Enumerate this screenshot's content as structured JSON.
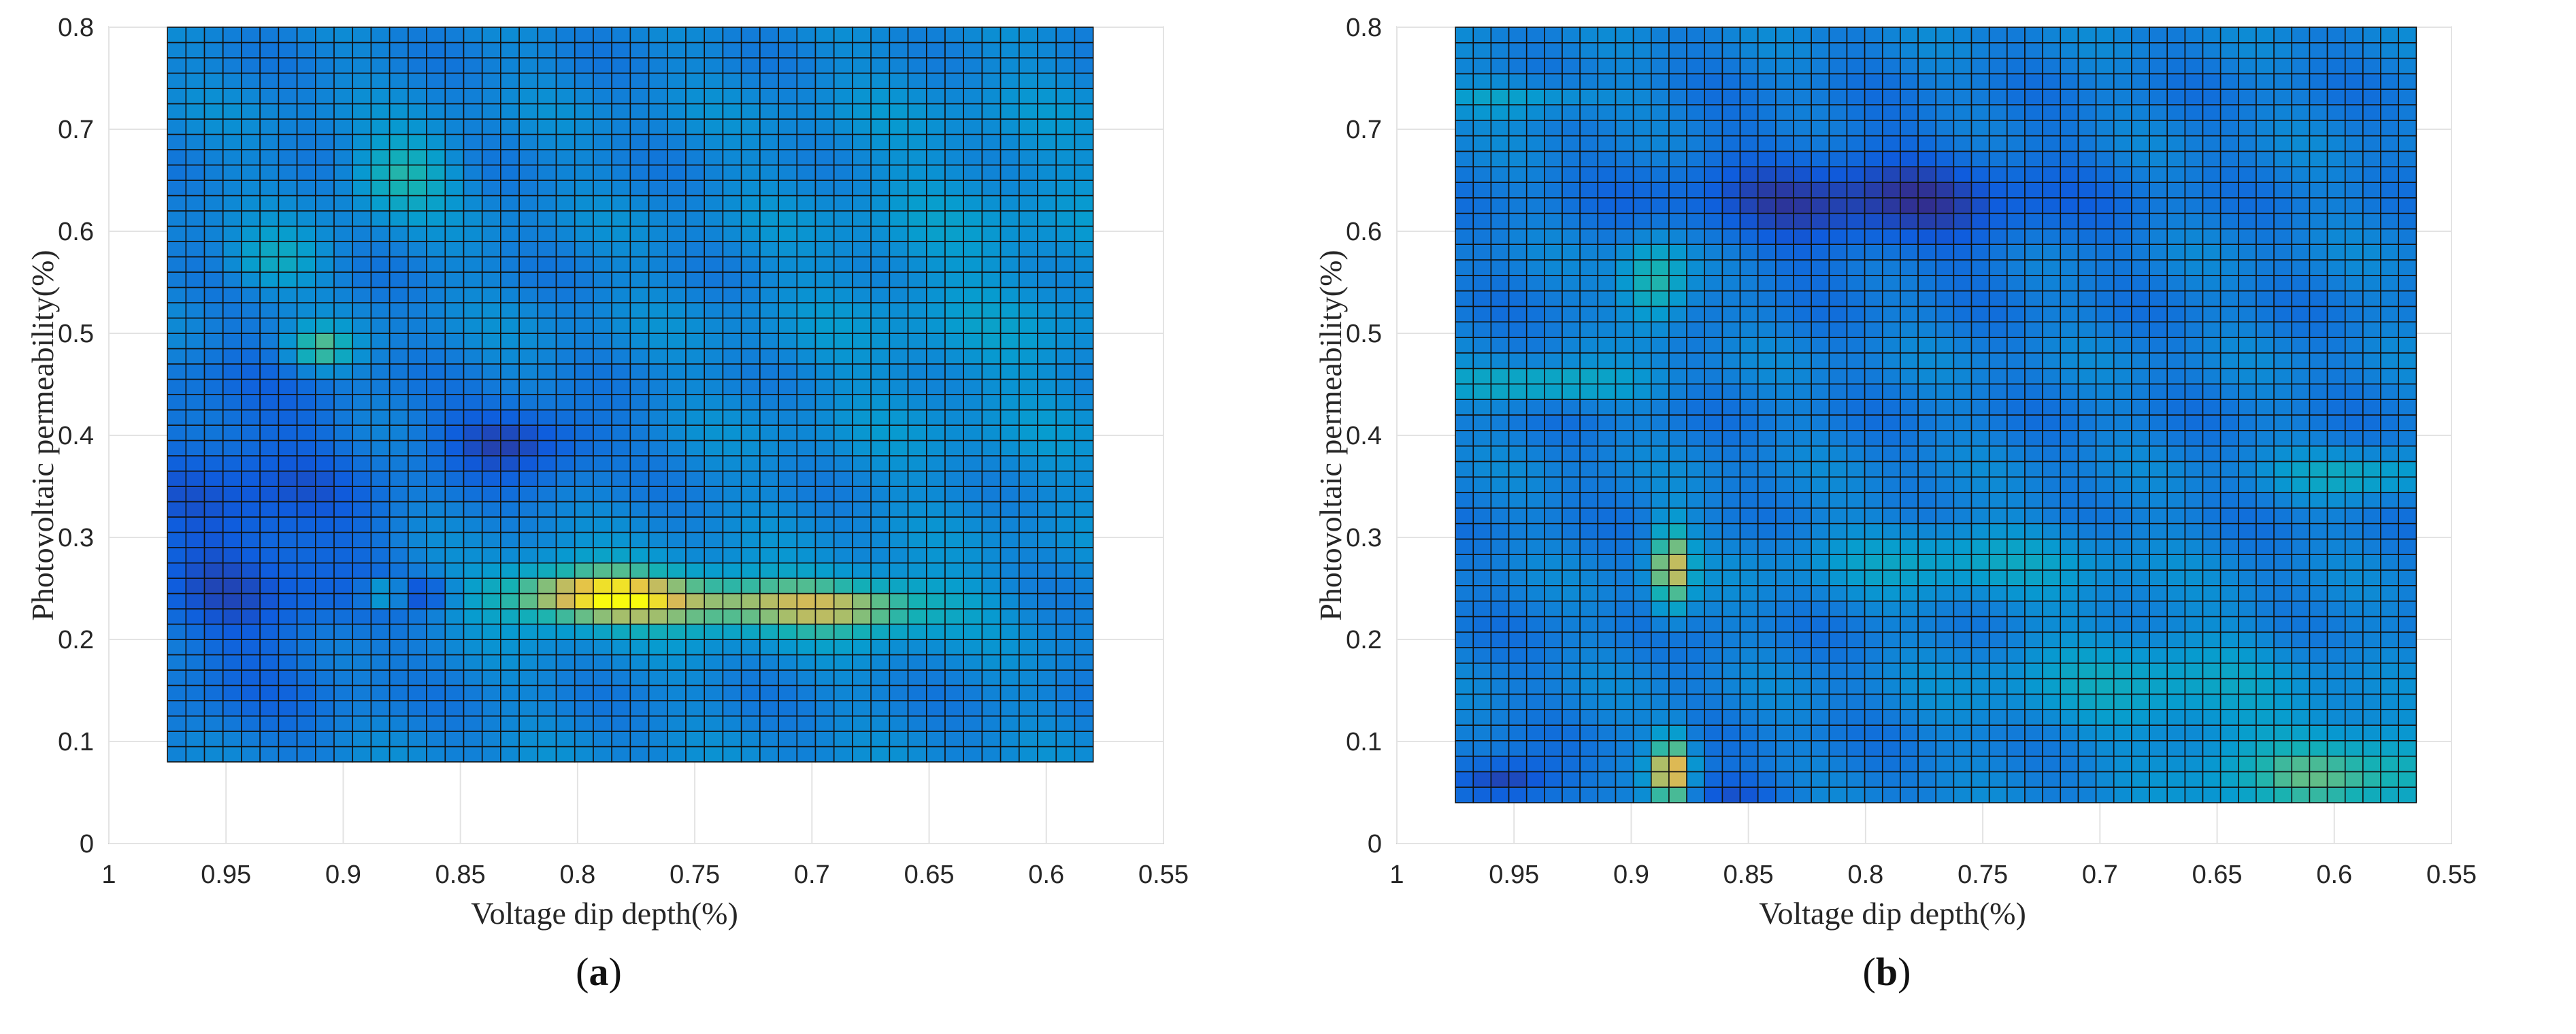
{
  "captions": [
    "a",
    "b"
  ],
  "chart_data": [
    {
      "type": "heatmap",
      "panel": "a",
      "xlabel": "Voltage dip depth(%)",
      "ylabel": "Photovoltaic permeability(%)",
      "xlim": [
        1,
        0.55
      ],
      "x_reversed": true,
      "ylim": [
        0,
        0.8
      ],
      "xticks": [
        1,
        0.95,
        0.9,
        0.85,
        0.8,
        0.75,
        0.7,
        0.65,
        0.6,
        0.55
      ],
      "xtick_labels": [
        "1",
        "0.95",
        "0.9",
        "0.85",
        "0.8",
        "0.75",
        "0.7",
        "0.65",
        "0.6",
        "0.55"
      ],
      "yticks": [
        0,
        0.1,
        0.2,
        0.3,
        0.4,
        0.5,
        0.6,
        0.7,
        0.8
      ],
      "ytick_labels": [
        "0",
        "0.1",
        "0.2",
        "0.3",
        "0.4",
        "0.5",
        "0.6",
        "0.7",
        "0.8"
      ],
      "grid": true,
      "colormap": "parula",
      "x_range": [
        0.975,
        0.58
      ],
      "y_range": [
        0.08,
        0.8
      ],
      "grid_cells": [
        50,
        48
      ],
      "base_value": 0.33,
      "hotspots": [
        {
          "x": 0.795,
          "y": 0.245,
          "value": 0.88,
          "sx": 0.03,
          "sy": 0.02
        },
        {
          "x": 0.73,
          "y": 0.235,
          "value": 0.72,
          "sx": 0.05,
          "sy": 0.02
        },
        {
          "x": 0.68,
          "y": 0.23,
          "value": 0.6,
          "sx": 0.03,
          "sy": 0.02
        },
        {
          "x": 0.825,
          "y": 0.395,
          "value": 0.05,
          "sx": 0.025,
          "sy": 0.025
        },
        {
          "x": 0.875,
          "y": 0.655,
          "value": 0.62,
          "sx": 0.015,
          "sy": 0.025
        },
        {
          "x": 0.91,
          "y": 0.485,
          "value": 0.72,
          "sx": 0.01,
          "sy": 0.015
        },
        {
          "x": 0.93,
          "y": 0.57,
          "value": 0.55,
          "sx": 0.015,
          "sy": 0.02
        },
        {
          "x": 0.882,
          "y": 0.245,
          "value": 0.7,
          "sx": 0.006,
          "sy": 0.008
        },
        {
          "x": 0.865,
          "y": 0.245,
          "value": 0.1,
          "sx": 0.008,
          "sy": 0.01
        },
        {
          "x": 0.94,
          "y": 0.3,
          "value": 0.12,
          "sx": 0.04,
          "sy": 0.12
        },
        {
          "x": 0.63,
          "y": 0.55,
          "value": 0.42,
          "sx": 0.06,
          "sy": 0.15
        }
      ]
    },
    {
      "type": "heatmap",
      "panel": "b",
      "xlabel": "Voltage dip depth(%)",
      "ylabel": "Photovoltaic permeability(%)",
      "xlim": [
        1,
        0.55
      ],
      "x_reversed": true,
      "ylim": [
        0,
        0.8
      ],
      "xticks": [
        1,
        0.95,
        0.9,
        0.85,
        0.8,
        0.75,
        0.7,
        0.65,
        0.6,
        0.55
      ],
      "xtick_labels": [
        "1",
        "0.95",
        "0.9",
        "0.85",
        "0.8",
        "0.75",
        "0.7",
        "0.65",
        "0.6",
        "0.55"
      ],
      "yticks": [
        0,
        0.1,
        0.2,
        0.3,
        0.4,
        0.5,
        0.6,
        0.7,
        0.8
      ],
      "ytick_labels": [
        "0",
        "0.1",
        "0.2",
        "0.3",
        "0.4",
        "0.5",
        "0.6",
        "0.7",
        "0.8"
      ],
      "grid": true,
      "colormap": "parula",
      "x_range": [
        0.975,
        0.565
      ],
      "y_range": [
        0.04,
        0.8
      ],
      "grid_cells": [
        54,
        50
      ],
      "base_value": 0.3,
      "hotspots": [
        {
          "x": 0.883,
          "y": 0.07,
          "value": 1.0,
          "sx": 0.006,
          "sy": 0.025
        },
        {
          "x": 0.883,
          "y": 0.27,
          "value": 0.88,
          "sx": 0.006,
          "sy": 0.03
        },
        {
          "x": 0.89,
          "y": 0.55,
          "value": 0.68,
          "sx": 0.01,
          "sy": 0.03
        },
        {
          "x": 0.94,
          "y": 0.45,
          "value": 0.58,
          "sx": 0.03,
          "sy": 0.012
        },
        {
          "x": 0.6,
          "y": 0.07,
          "value": 0.68,
          "sx": 0.04,
          "sy": 0.03
        },
        {
          "x": 0.76,
          "y": 0.28,
          "value": 0.5,
          "sx": 0.05,
          "sy": 0.025
        },
        {
          "x": 0.59,
          "y": 0.36,
          "value": 0.52,
          "sx": 0.025,
          "sy": 0.015
        },
        {
          "x": 0.95,
          "y": 0.73,
          "value": 0.5,
          "sx": 0.03,
          "sy": 0.012
        },
        {
          "x": 0.8,
          "y": 0.63,
          "value": 0.06,
          "sx": 0.06,
          "sy": 0.04
        },
        {
          "x": 0.955,
          "y": 0.06,
          "value": 0.02,
          "sx": 0.015,
          "sy": 0.015
        },
        {
          "x": 0.86,
          "y": 0.05,
          "value": 0.12,
          "sx": 0.02,
          "sy": 0.012
        },
        {
          "x": 0.68,
          "y": 0.16,
          "value": 0.5,
          "sx": 0.05,
          "sy": 0.04
        }
      ]
    }
  ]
}
